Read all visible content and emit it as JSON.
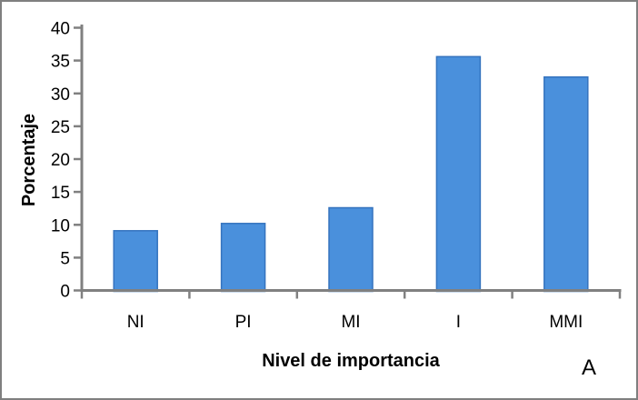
{
  "chart_data": {
    "type": "bar",
    "categories": [
      "NI",
      "PI",
      "MI",
      "I",
      "MMI"
    ],
    "values": [
      9.1,
      10.2,
      12.6,
      35.6,
      32.5
    ],
    "title": "",
    "xlabel": "Nivel de importancia",
    "ylabel": "Porcentaje",
    "ylim": [
      0,
      40
    ],
    "ytick_step": 5,
    "ytick_labels": [
      "0",
      "5",
      "10",
      "15",
      "20",
      "25",
      "30",
      "35",
      "40"
    ],
    "grid": false,
    "legend": false,
    "annotation": "A",
    "colors": {
      "bar_fill": "#4a90dc",
      "bar_stroke": "#3573be",
      "axis": "#808080",
      "text": "#000000",
      "frame_border": "#7f7f7f",
      "background": "#ffffff"
    }
  }
}
